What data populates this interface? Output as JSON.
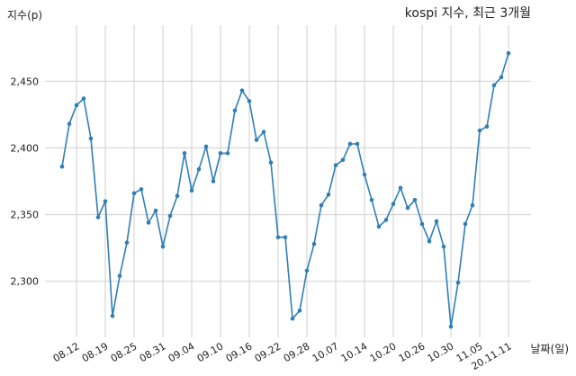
{
  "chart_data": {
    "type": "line",
    "title": "kospi 지수, 최근 3개월",
    "xlabel": "날짜(일)",
    "ylabel": "지수(p)",
    "ylim": [
      2258,
      2492
    ],
    "yticks": [
      2300,
      2350,
      2400,
      2450
    ],
    "ytick_labels": [
      "2,300",
      "2,350",
      "2,400",
      "2,450"
    ],
    "xticks": [
      {
        "index": 2,
        "label": "08.12"
      },
      {
        "index": 6,
        "label": "08.19"
      },
      {
        "index": 10,
        "label": "08.25"
      },
      {
        "index": 14,
        "label": "08.31"
      },
      {
        "index": 18,
        "label": "09.04"
      },
      {
        "index": 22,
        "label": "09.10"
      },
      {
        "index": 26,
        "label": "09.16"
      },
      {
        "index": 30,
        "label": "09.22"
      },
      {
        "index": 34,
        "label": "09.28"
      },
      {
        "index": 38,
        "label": "10.07"
      },
      {
        "index": 42,
        "label": "10.14"
      },
      {
        "index": 46,
        "label": "10.20"
      },
      {
        "index": 50,
        "label": "10.26"
      },
      {
        "index": 54,
        "label": "10.30"
      },
      {
        "index": 58,
        "label": "11.05"
      },
      {
        "index": 62,
        "label": "20.11.11"
      }
    ],
    "grid": true,
    "series": [
      {
        "values": [
          2386,
          2418,
          2432,
          2437,
          2407,
          2348,
          2360,
          2274,
          2304,
          2329,
          2366,
          2369,
          2344,
          2353,
          2326,
          2349,
          2364,
          2396,
          2368,
          2384,
          2401,
          2375,
          2396,
          2396,
          2428,
          2443,
          2435,
          2406,
          2412,
          2389,
          2333,
          2333,
          2272,
          2278,
          2308,
          2328,
          2357,
          2365,
          2387,
          2391,
          2403,
          2403,
          2380,
          2361,
          2341,
          2346,
          2358,
          2370,
          2355,
          2361,
          2343,
          2330,
          2345,
          2326,
          2266,
          2299,
          2343,
          2357,
          2413,
          2416,
          2447,
          2453,
          2471
        ],
        "color": "#2f7fb5"
      }
    ]
  }
}
